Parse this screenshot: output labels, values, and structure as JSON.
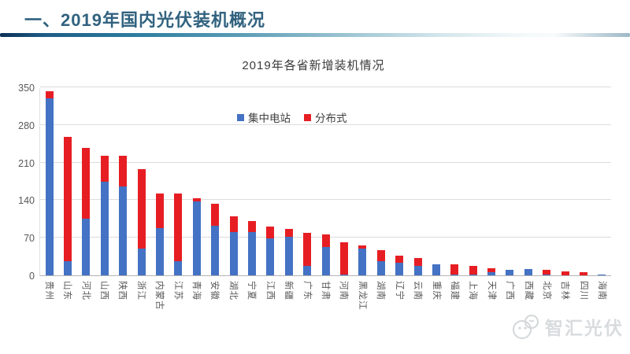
{
  "header": {
    "title": "一、2019年国内光伏装机概况"
  },
  "watermark": {
    "text": "智汇光伏"
  },
  "chart_data": {
    "type": "bar",
    "stacked": true,
    "title": "2019年各省新增装机情况",
    "categories": [
      "贵州",
      "山东",
      "河北",
      "山西",
      "陕西",
      "浙江",
      "内蒙古",
      "江苏",
      "青海",
      "安徽",
      "湖北",
      "宁夏",
      "江西",
      "新疆",
      "广东",
      "甘肃",
      "河南",
      "黑龙江",
      "湖南",
      "辽宁",
      "云南",
      "重庆",
      "福建",
      "上海",
      "天津",
      "广西",
      "西藏",
      "北京",
      "吉林",
      "四川",
      "海南"
    ],
    "series": [
      {
        "name": "集中电站",
        "color": "#4472c4",
        "values": [
          330,
          27,
          105,
          175,
          165,
          50,
          88,
          27,
          138,
          93,
          80,
          81,
          69,
          72,
          17,
          53,
          2,
          50,
          27,
          24,
          17,
          20,
          2,
          2,
          6,
          11,
          12,
          1,
          0,
          0,
          2
        ]
      },
      {
        "name": "分布式",
        "color": "#e61e23",
        "values": [
          13,
          231,
          133,
          48,
          58,
          148,
          64,
          125,
          5,
          41,
          30,
          20,
          22,
          15,
          62,
          23,
          60,
          6,
          20,
          13,
          15,
          1,
          18,
          16,
          7,
          0,
          0,
          10,
          7,
          6,
          0
        ]
      }
    ],
    "ylim": [
      0,
      350
    ],
    "yticks": [
      0,
      70,
      140,
      210,
      280,
      350
    ],
    "grid": true,
    "legend_position": "top-inside",
    "colors": {
      "gridline": "#dcdcdc",
      "axis_line": "#b3b3b3",
      "tick_text": "#595959",
      "title_text": "#3b3b3b",
      "header_text": "#31627f"
    }
  }
}
